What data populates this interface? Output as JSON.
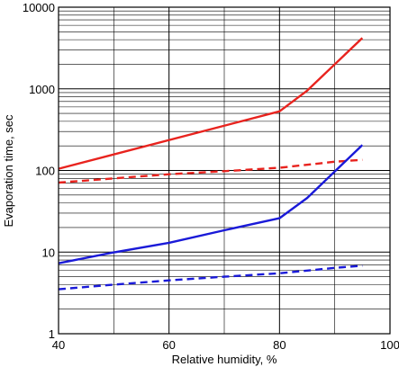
{
  "chart_data": {
    "type": "line",
    "xlabel": "Relative humidity, %",
    "ylabel": "Evaporation time, sec",
    "xlim": [
      40,
      100
    ],
    "ylim": [
      1,
      10000
    ],
    "yscale": "log",
    "grid": true,
    "x_ticks": [
      40,
      60,
      80,
      100
    ],
    "x_tick_labels": [
      "40",
      "60",
      "80",
      "100"
    ],
    "y_ticks": [
      1,
      10,
      100,
      1000,
      10000
    ],
    "y_tick_labels": [
      "1",
      "10",
      "100",
      "1000",
      "10000"
    ],
    "series": [
      {
        "color": "#e8231e",
        "dash": "solid",
        "x": [
          40,
          80,
          85,
          95
        ],
        "y": [
          105,
          530,
          950,
          4200
        ]
      },
      {
        "color": "#e8231e",
        "dash": "dashed",
        "x": [
          40,
          50,
          60,
          70,
          80,
          90,
          95
        ],
        "y": [
          71,
          80,
          90,
          98,
          108,
          128,
          135
        ]
      },
      {
        "color": "#1a1ad8",
        "dash": "solid",
        "x": [
          40,
          50,
          60,
          70,
          80,
          85,
          95
        ],
        "y": [
          7.3,
          9.9,
          13,
          18.5,
          26,
          46,
          205
        ]
      },
      {
        "color": "#1a1ad8",
        "dash": "dashed",
        "x": [
          40,
          50,
          60,
          70,
          80,
          90,
          95
        ],
        "y": [
          3.5,
          4.0,
          4.5,
          5.0,
          5.5,
          6.4,
          6.8
        ]
      }
    ]
  }
}
